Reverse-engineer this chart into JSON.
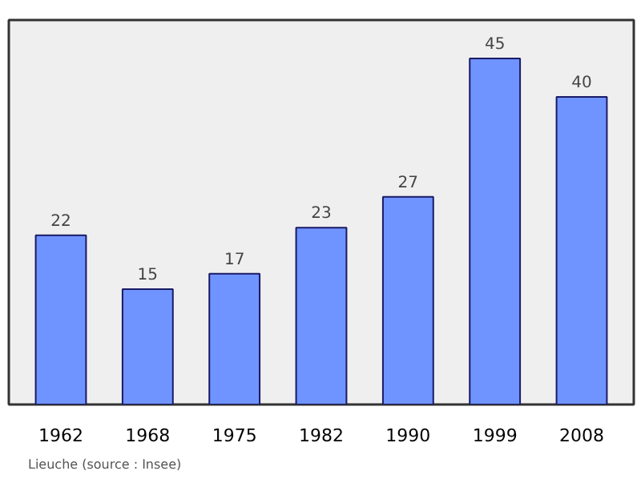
{
  "chart_data": {
    "type": "bar",
    "categories": [
      "1962",
      "1968",
      "1975",
      "1982",
      "1990",
      "1999",
      "2008"
    ],
    "values": [
      22,
      15,
      17,
      23,
      27,
      45,
      40
    ],
    "color": "#7094ff",
    "data_labels": true,
    "ylim": [
      0,
      50
    ],
    "grid": false,
    "annotations": [
      "Lieuche    (source : Insee)"
    ]
  }
}
